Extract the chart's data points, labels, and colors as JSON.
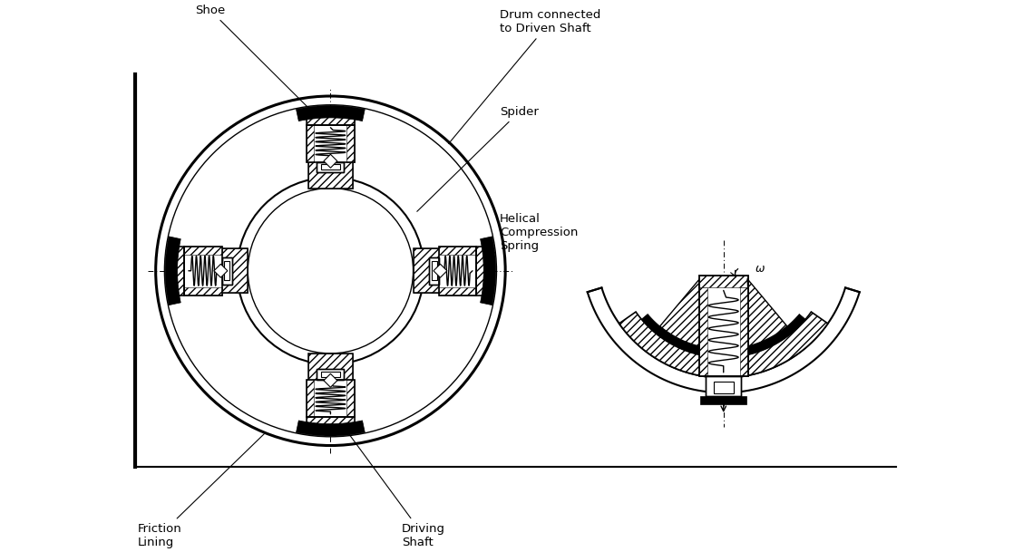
{
  "figure_width": 11.39,
  "figure_height": 6.09,
  "bg_color": "#ffffff",
  "labels": {
    "shoe": "Shoe",
    "friction_lining": "Friction\nLining",
    "drum": "Drum connected\nto Driven Shaft",
    "spider": "Spider",
    "helical": "Helical\nCompression\nSpring",
    "driving_shaft": "Driving\nShaft",
    "omega": "ω"
  }
}
